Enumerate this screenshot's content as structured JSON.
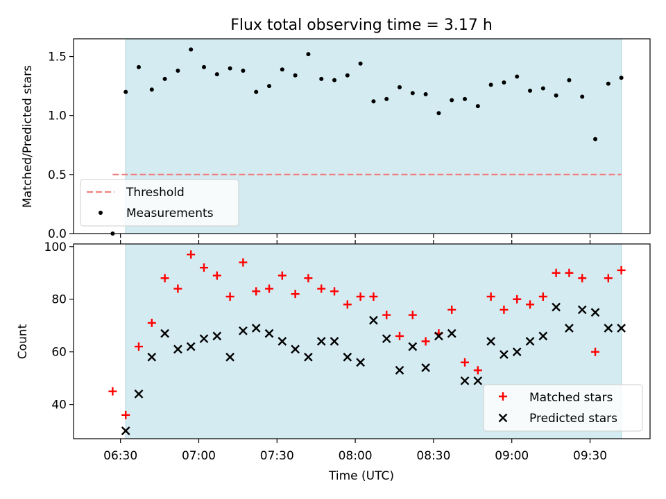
{
  "chart_data": [
    {
      "type": "scatter",
      "title": "Flux total observing time = 3.17 h",
      "ylabel": "Matched/Predicted stars",
      "ylim": [
        0,
        1.65
      ],
      "yticks": [
        "0.0",
        "0.5",
        "1.0",
        "1.5"
      ],
      "threshold": {
        "label": "Threshold",
        "value": 0.5,
        "x_start": "06:27",
        "x_end": "09:42",
        "color": "#f08080"
      },
      "shaded_interval": {
        "start": "06:32",
        "end": "09:42",
        "color": "#d4ebf1"
      },
      "legend": {
        "placement": "lower-left",
        "entries": [
          "Threshold",
          "Measurements"
        ]
      },
      "series": [
        {
          "name": "Measurements",
          "x": [
            "06:27",
            "06:32",
            "06:37",
            "06:42",
            "06:47",
            "06:52",
            "06:57",
            "07:02",
            "07:07",
            "07:12",
            "07:17",
            "07:22",
            "07:27",
            "07:32",
            "07:37",
            "07:42",
            "07:47",
            "07:52",
            "07:57",
            "08:02",
            "08:07",
            "08:12",
            "08:17",
            "08:22",
            "08:27",
            "08:32",
            "08:37",
            "08:42",
            "08:47",
            "08:52",
            "08:57",
            "09:02",
            "09:07",
            "09:12",
            "09:17",
            "09:22",
            "09:27",
            "09:32",
            "09:37",
            "09:42"
          ],
          "y": [
            0.0,
            1.2,
            1.41,
            1.22,
            1.31,
            1.38,
            1.56,
            1.41,
            1.35,
            1.4,
            1.38,
            1.2,
            1.25,
            1.39,
            1.34,
            1.52,
            1.31,
            1.3,
            1.34,
            1.44,
            1.12,
            1.14,
            1.24,
            1.19,
            1.18,
            1.02,
            1.13,
            1.14,
            1.08,
            1.26,
            1.28,
            1.33,
            1.21,
            1.23,
            1.17,
            1.3,
            1.16,
            0.8,
            1.27,
            1.32
          ],
          "color": "#000000"
        }
      ]
    },
    {
      "type": "scatter",
      "xlabel": "Time (UTC)",
      "ylabel": "Count",
      "ylim": [
        27,
        101
      ],
      "yticks": [
        "40",
        "60",
        "80",
        "100"
      ],
      "xticks": [
        "06:30",
        "07:00",
        "07:30",
        "08:00",
        "08:30",
        "09:00",
        "09:30"
      ],
      "xlim": [
        "06:12",
        "09:53"
      ],
      "shaded_interval": {
        "start": "06:32",
        "end": "09:42",
        "color": "#d4ebf1"
      },
      "legend": {
        "placement": "lower-right",
        "entries": [
          "Matched stars",
          "Predicted stars"
        ]
      },
      "x": [
        "06:27",
        "06:32",
        "06:37",
        "06:42",
        "06:47",
        "06:52",
        "06:57",
        "07:02",
        "07:07",
        "07:12",
        "07:17",
        "07:22",
        "07:27",
        "07:32",
        "07:37",
        "07:42",
        "07:47",
        "07:52",
        "07:57",
        "08:02",
        "08:07",
        "08:12",
        "08:17",
        "08:22",
        "08:27",
        "08:32",
        "08:37",
        "08:42",
        "08:47",
        "08:52",
        "08:57",
        "09:02",
        "09:07",
        "09:12",
        "09:17",
        "09:22",
        "09:27",
        "09:32",
        "09:37",
        "09:42"
      ],
      "series": [
        {
          "name": "Matched stars",
          "marker": "plus",
          "color": "#ff0000",
          "values": [
            45,
            36,
            62,
            71,
            88,
            84,
            97,
            92,
            89,
            81,
            94,
            83,
            84,
            89,
            82,
            88,
            84,
            83,
            78,
            81,
            81,
            74,
            66,
            74,
            64,
            67,
            76,
            56,
            53,
            81,
            76,
            80,
            78,
            81,
            90,
            90,
            88,
            60,
            88,
            91
          ]
        },
        {
          "name": "Predicted stars",
          "marker": "x",
          "color": "#000000",
          "values": [
            null,
            30,
            44,
            58,
            67,
            61,
            62,
            65,
            66,
            58,
            68,
            69,
            67,
            64,
            61,
            58,
            64,
            64,
            58,
            56,
            72,
            65,
            53,
            62,
            54,
            66,
            67,
            49,
            49,
            64,
            59,
            60,
            64,
            66,
            77,
            69,
            76,
            75,
            69,
            69
          ]
        }
      ]
    }
  ]
}
